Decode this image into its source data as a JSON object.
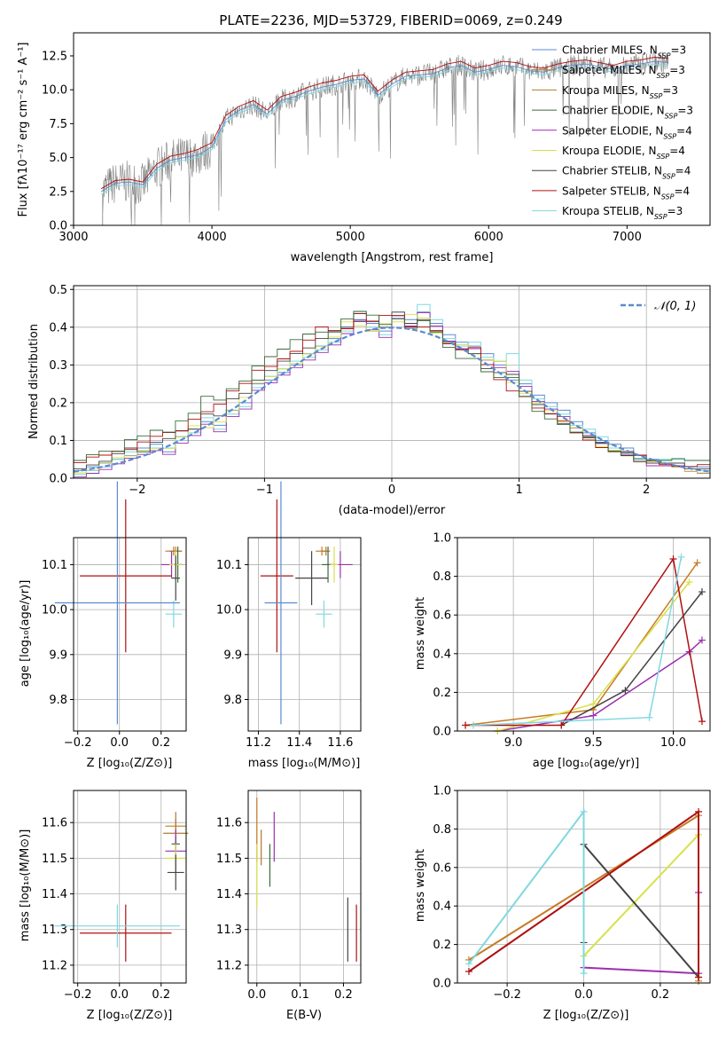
{
  "figure": {
    "title": "PLATE=2236, MJD=53729, FIBERID=0069, z=0.249"
  },
  "colors": {
    "model": [
      "#5b8bd0",
      "#c77a22",
      "#b07a30",
      "#3a6b3a",
      "#9b2fb0",
      "#d8e048",
      "#444444",
      "#b01010",
      "#7fd8df"
    ],
    "data": "#808080",
    "gauss": "#5b8bd0",
    "grid": "#b0b0b0"
  },
  "panels": {
    "spectrum": {
      "xlabel": "wavelength [Angstrom, rest frame]",
      "ylabel": "Flux [fλ10⁻¹⁷ erg cm⁻² s⁻¹ A⁻¹]",
      "xticks": [
        "3000",
        "4000",
        "5000",
        "6000",
        "7000"
      ],
      "yticks": [
        "0.0",
        "2.5",
        "5.0",
        "7.5",
        "10.0",
        "12.5"
      ],
      "legend": [
        "Chabrier MILES, N_SSP=3",
        "Salpeter MILES, N_SSP=3",
        "Kroupa MILES, N_SSP=3",
        "Chabrier ELODIE, N_SSP=3",
        "Salpeter ELODIE, N_SSP=4",
        "Kroupa ELODIE, N_SSP=4",
        "Chabrier STELIB, N_SSP=4",
        "Salpeter STELIB, N_SSP=4",
        "Kroupa STELIB, N_SSP=3"
      ]
    },
    "residual": {
      "xlabel": "(data-model)/error",
      "ylabel": "Normed distribution",
      "xticks": [
        "−2",
        "−1",
        "0",
        "1",
        "2"
      ],
      "yticks": [
        "0.0",
        "0.1",
        "0.2",
        "0.3",
        "0.4",
        "0.5"
      ],
      "legend": "𝒩(0, 1)"
    },
    "age_z": {
      "xlabel": "Z [log₁₀(Z/Z⊙)]",
      "ylabel": "age  [log₁₀(age/yr)]",
      "xticks": [
        "−0.2",
        "0.0",
        "0.2"
      ],
      "yticks": [
        "9.8",
        "9.9",
        "10.0",
        "10.1"
      ]
    },
    "age_mass": {
      "xlabel": "mass [log₁₀(M/M⊙)]",
      "xticks": [
        "11.2",
        "11.4",
        "11.6"
      ],
      "yticks": [
        "9.8",
        "9.9",
        "10.0",
        "10.1"
      ]
    },
    "weight_age": {
      "xlabel": "age  [log₁₀(age/yr)]",
      "ylabel": "mass weight",
      "xticks": [
        "9.0",
        "9.5",
        "10.0"
      ],
      "yticks": [
        "0.0",
        "0.2",
        "0.4",
        "0.6",
        "0.8",
        "1.0"
      ]
    },
    "mass_z": {
      "xlabel": "Z [log₁₀(Z/Z⊙)]",
      "ylabel": "mass [log₁₀(M/M⊙)]",
      "xticks": [
        "−0.2",
        "0.0",
        "0.2"
      ],
      "yticks": [
        "11.2",
        "11.3",
        "11.4",
        "11.5",
        "11.6"
      ]
    },
    "mass_ebv": {
      "xlabel": "E(B-V)",
      "xticks": [
        "0.0",
        "0.1",
        "0.2"
      ],
      "yticks": [
        "11.2",
        "11.3",
        "11.4",
        "11.5",
        "11.6"
      ]
    },
    "weight_z": {
      "xlabel": "Z [log₁₀(Z/Z⊙)]",
      "ylabel": "mass weight",
      "xticks": [
        "−0.2",
        "0.0",
        "0.2"
      ],
      "yticks": [
        "0.0",
        "0.2",
        "0.4",
        "0.6",
        "0.8",
        "1.0"
      ]
    }
  },
  "chart_data": [
    {
      "type": "line",
      "title": "PLATE=2236, MJD=53729, FIBERID=0069, z=0.249",
      "xlabel": "wavelength [Angstrom, rest frame]",
      "ylabel": "Flux [fλ10⁻¹⁷ erg cm⁻² s⁻¹ A⁻¹]",
      "xlim": [
        3000,
        7600
      ],
      "ylim": [
        0,
        14.2
      ],
      "grid": false,
      "legend_position": "top-right",
      "x": [
        3200,
        3300,
        3400,
        3500,
        3600,
        3700,
        3800,
        3900,
        4000,
        4100,
        4200,
        4300,
        4400,
        4500,
        4600,
        4700,
        4800,
        4900,
        5000,
        5100,
        5200,
        5300,
        5400,
        5500,
        5600,
        5700,
        5800,
        5900,
        6000,
        6100,
        6200,
        6300,
        6400,
        6500,
        6600,
        6700,
        6800,
        6900,
        7000,
        7100,
        7200,
        7300
      ],
      "series": [
        {
          "name": "Chabrier MILES, N_SSP=3",
          "values": [
            2.5,
            3.1,
            3.2,
            3.0,
            4.2,
            4.8,
            5.0,
            5.2,
            5.8,
            7.8,
            8.5,
            8.9,
            8.2,
            9.2,
            9.5,
            9.9,
            10.2,
            10.4,
            10.7,
            10.8,
            9.6,
            10.4,
            11.0,
            11.1,
            11.2,
            11.6,
            11.8,
            11.3,
            11.5,
            11.8,
            11.7,
            11.4,
            11.3,
            11.6,
            11.8,
            11.9,
            11.7,
            11.5,
            11.8,
            11.9,
            12.1,
            12.0
          ]
        },
        {
          "name": "Salpeter STELIB, N_SSP=4",
          "values": [
            2.7,
            3.3,
            3.4,
            3.2,
            4.5,
            5.1,
            5.3,
            5.6,
            6.1,
            8.1,
            8.8,
            9.2,
            8.5,
            9.5,
            9.8,
            10.2,
            10.5,
            10.7,
            11.0,
            11.1,
            9.9,
            10.7,
            11.3,
            11.4,
            11.5,
            11.9,
            12.1,
            11.6,
            11.8,
            12.1,
            12.0,
            11.7,
            11.6,
            11.9,
            12.1,
            12.2,
            12.0,
            11.8,
            12.1,
            12.2,
            12.4,
            12.3
          ]
        },
        {
          "name": "Kroupa STELIB, N_SSP=3",
          "values": [
            2.3,
            2.9,
            3.0,
            2.8,
            4.0,
            4.6,
            4.8,
            5.0,
            5.6,
            7.6,
            8.3,
            8.7,
            8.0,
            9.0,
            9.3,
            9.7,
            10.0,
            10.2,
            10.5,
            10.6,
            9.4,
            10.2,
            10.8,
            10.9,
            11.0,
            11.4,
            11.6,
            11.1,
            11.3,
            11.6,
            11.5,
            11.2,
            11.1,
            11.4,
            11.6,
            11.7,
            11.5,
            11.3,
            11.6,
            11.7,
            11.9,
            11.8
          ]
        }
      ]
    },
    {
      "type": "bar",
      "xlabel": "(data-model)/error",
      "ylabel": "Normed distribution",
      "xlim": [
        -2.5,
        2.5
      ],
      "ylim": [
        0,
        0.51
      ],
      "grid": true,
      "legend_position": "top-right",
      "x": [
        -2.45,
        -2.35,
        -2.25,
        -2.15,
        -2.05,
        -1.95,
        -1.85,
        -1.75,
        -1.65,
        -1.55,
        -1.45,
        -1.35,
        -1.25,
        -1.15,
        -1.05,
        -0.95,
        -0.85,
        -0.75,
        -0.65,
        -0.55,
        -0.45,
        -0.35,
        -0.25,
        -0.15,
        -0.05,
        0.05,
        0.15,
        0.25,
        0.35,
        0.45,
        0.55,
        0.65,
        0.75,
        0.85,
        0.95,
        1.05,
        1.15,
        1.25,
        1.35,
        1.45,
        1.55,
        1.65,
        1.75,
        1.85,
        1.95,
        2.05,
        2.15,
        2.25,
        2.35,
        2.45
      ],
      "series": [
        {
          "name": "Chabrier MILES, N_SSP=3",
          "values": [
            0.02,
            0.03,
            0.04,
            0.05,
            0.06,
            0.08,
            0.09,
            0.07,
            0.11,
            0.13,
            0.15,
            0.14,
            0.18,
            0.2,
            0.25,
            0.26,
            0.28,
            0.3,
            0.33,
            0.35,
            0.37,
            0.4,
            0.42,
            0.41,
            0.39,
            0.43,
            0.42,
            0.44,
            0.41,
            0.38,
            0.36,
            0.35,
            0.33,
            0.3,
            0.26,
            0.25,
            0.22,
            0.2,
            0.18,
            0.15,
            0.12,
            0.1,
            0.09,
            0.08,
            0.06,
            0.05,
            0.04,
            0.04,
            0.03,
            0.03
          ]
        },
        {
          "name": "Kroupa STELIB, N_SSP=3",
          "values": [
            0.01,
            0.02,
            0.03,
            0.05,
            0.07,
            0.07,
            0.08,
            0.08,
            0.1,
            0.12,
            0.16,
            0.13,
            0.17,
            0.19,
            0.24,
            0.27,
            0.29,
            0.31,
            0.32,
            0.34,
            0.36,
            0.39,
            0.44,
            0.4,
            0.38,
            0.44,
            0.41,
            0.46,
            0.42,
            0.37,
            0.35,
            0.36,
            0.32,
            0.31,
            0.33,
            0.26,
            0.21,
            0.19,
            0.17,
            0.14,
            0.13,
            0.11,
            0.08,
            0.07,
            0.05,
            0.04,
            0.05,
            0.05,
            0.03,
            0.02
          ]
        }
      ]
    },
    {
      "type": "scatter",
      "xlabel": "Z [log₁₀(Z/Z⊙)]",
      "ylabel": "age  [log₁₀(age/yr)]",
      "xlim": [
        -0.22,
        0.32
      ],
      "ylim": [
        9.73,
        10.16
      ],
      "grid": true,
      "points": [
        {
          "x": 0.27,
          "y": 10.13,
          "xerr": 0.03,
          "yerr": 0.01
        },
        {
          "x": 0.26,
          "y": 10.13,
          "xerr": 0.04,
          "yerr": 0.01
        },
        {
          "x": 0.28,
          "y": 10.1,
          "xerr": 0.02,
          "yerr": 0.04
        },
        {
          "x": 0.25,
          "y": 10.1,
          "xerr": 0.05,
          "yerr": 0.03
        },
        {
          "x": 0.27,
          "y": 10.1,
          "xerr": 0.03,
          "yerr": 0.03
        },
        {
          "x": 0.27,
          "y": 10.07,
          "xerr": 0.02,
          "yerr": 0.05
        },
        {
          "x": 0.03,
          "y": 10.075,
          "xerr": 0.22,
          "yerr": 0.17
        },
        {
          "x": 0.26,
          "y": 9.99,
          "xerr": 0.04,
          "yerr": 0.03
        },
        {
          "x": -0.01,
          "y": 10.015,
          "xerr": 0.3,
          "yerr": 0.27
        }
      ]
    },
    {
      "type": "scatter",
      "xlabel": "mass [log₁₀(M/M⊙)]",
      "xlim": [
        11.15,
        11.7
      ],
      "ylim": [
        9.73,
        10.16
      ],
      "grid": true,
      "points": [
        {
          "x": 11.51,
          "y": 10.13,
          "xerr": 0.03,
          "yerr": 0.01
        },
        {
          "x": 11.53,
          "y": 10.13,
          "xerr": 0.02,
          "yerr": 0.01
        },
        {
          "x": 11.54,
          "y": 10.1,
          "xerr": 0.03,
          "yerr": 0.04
        },
        {
          "x": 11.6,
          "y": 10.1,
          "xerr": 0.06,
          "yerr": 0.03
        },
        {
          "x": 11.57,
          "y": 10.1,
          "xerr": 0.02,
          "yerr": 0.04
        },
        {
          "x": 11.46,
          "y": 10.07,
          "xerr": 0.08,
          "yerr": 0.06
        },
        {
          "x": 11.29,
          "y": 10.075,
          "xerr": 0.08,
          "yerr": 0.17
        },
        {
          "x": 11.52,
          "y": 9.99,
          "xerr": 0.04,
          "yerr": 0.03
        },
        {
          "x": 11.31,
          "y": 10.015,
          "xerr": 0.08,
          "yerr": 0.27
        }
      ]
    },
    {
      "type": "line",
      "xlabel": "age  [log₁₀(age/yr)]",
      "ylabel": "mass weight",
      "xlim": [
        8.65,
        10.23
      ],
      "ylim": [
        0,
        1.0
      ],
      "grid": true,
      "series": [
        {
          "name": "Chabrier MILES, N_SSP=3",
          "x": [
            8.7,
            9.5,
            10.15
          ],
          "y": [
            0.03,
            0.11,
            0.87
          ]
        },
        {
          "name": "Salpeter ELODIE, N_SSP=4",
          "x": [
            8.9,
            9.5,
            10.1,
            10.18
          ],
          "y": [
            0.0,
            0.08,
            0.41,
            0.47
          ]
        },
        {
          "name": "Kroupa ELODIE, N_SSP=4",
          "x": [
            8.9,
            9.5,
            10.1
          ],
          "y": [
            0.0,
            0.14,
            0.77
          ]
        },
        {
          "name": "Chabrier STELIB, N_SSP=4",
          "x": [
            9.3,
            9.7,
            10.18
          ],
          "y": [
            0.03,
            0.21,
            0.72
          ]
        },
        {
          "name": "Salpeter STELIB, N_SSP=4",
          "x": [
            8.7,
            9.3,
            10.0,
            10.18
          ],
          "y": [
            0.03,
            0.03,
            0.89,
            0.05
          ]
        },
        {
          "name": "Kroupa STELIB, N_SSP=3",
          "x": [
            8.75,
            9.85,
            10.05
          ],
          "y": [
            0.03,
            0.07,
            0.9
          ]
        }
      ]
    },
    {
      "type": "scatter",
      "xlabel": "Z [log₁₀(Z/Z⊙)]",
      "ylabel": "mass [log₁₀(M/M⊙)]",
      "xlim": [
        -0.22,
        0.32
      ],
      "ylim": [
        11.15,
        11.69
      ],
      "grid": true,
      "points": [
        {
          "x": 0.27,
          "y": 11.59,
          "xerr": 0.05,
          "yerr": 0.02
        },
        {
          "x": 0.27,
          "y": 11.57,
          "xerr": 0.06,
          "yerr": 0.06
        },
        {
          "x": 0.27,
          "y": 11.54,
          "xerr": 0.02,
          "yerr": 0.02
        },
        {
          "x": 0.27,
          "y": 11.52,
          "xerr": 0.05,
          "yerr": 0.06
        },
        {
          "x": 0.27,
          "y": 11.5,
          "xerr": 0.05,
          "yerr": 0.04
        },
        {
          "x": 0.27,
          "y": 11.46,
          "xerr": 0.04,
          "yerr": 0.05
        },
        {
          "x": 0.03,
          "y": 11.29,
          "xerr": 0.22,
          "yerr": 0.08
        },
        {
          "x": -0.01,
          "y": 11.31,
          "xerr": 0.3,
          "yerr": 0.06
        }
      ]
    },
    {
      "type": "scatter",
      "xlabel": "E(B-V)",
      "xlim": [
        -0.02,
        0.24
      ],
      "ylim": [
        11.15,
        11.69
      ],
      "grid": true,
      "points": [
        {
          "x": 0.0,
          "y": 11.58,
          "yerr": 0.09
        },
        {
          "x": 0.01,
          "y": 11.53,
          "yerr": 0.05
        },
        {
          "x": 0.03,
          "y": 11.48,
          "yerr": 0.06
        },
        {
          "x": 0.04,
          "y": 11.56,
          "yerr": 0.07
        },
        {
          "x": 0.0,
          "y": 11.45,
          "yerr": 0.09
        },
        {
          "x": 0.21,
          "y": 11.3,
          "yerr": 0.09
        },
        {
          "x": 0.23,
          "y": 11.29,
          "yerr": 0.08
        }
      ]
    },
    {
      "type": "line",
      "xlabel": "Z [log₁₀(Z/Z⊙)]",
      "ylabel": "mass weight",
      "xlim": [
        -0.33,
        0.33
      ],
      "ylim": [
        0,
        1.0
      ],
      "grid": true,
      "series": [
        {
          "name": "Chabrier MILES, N_SSP=3",
          "x": [
            -0.3,
            0.3,
            0.3
          ],
          "y": [
            0.12,
            0.87,
            0.01
          ]
        },
        {
          "name": "Salpeter ELODIE, N_SSP=4",
          "x": [
            0.0,
            0.3,
            0.3
          ],
          "y": [
            0.08,
            0.05,
            0.47
          ]
        },
        {
          "name": "Kroupa ELODIE, N_SSP=4",
          "x": [
            0.0,
            0.3
          ],
          "y": [
            0.14,
            0.77
          ]
        },
        {
          "name": "Chabrier STELIB, N_SSP=4",
          "x": [
            0.0,
            0.0,
            0.3
          ],
          "y": [
            0.21,
            0.72,
            0.03
          ]
        },
        {
          "name": "Salpeter STELIB, N_SSP=4",
          "x": [
            -0.3,
            0.3,
            0.3
          ],
          "y": [
            0.06,
            0.89,
            0.03
          ]
        },
        {
          "name": "Kroupa STELIB, N_SSP=3",
          "x": [
            -0.3,
            0.0,
            0.0
          ],
          "y": [
            0.1,
            0.89,
            0.05
          ]
        }
      ]
    }
  ]
}
